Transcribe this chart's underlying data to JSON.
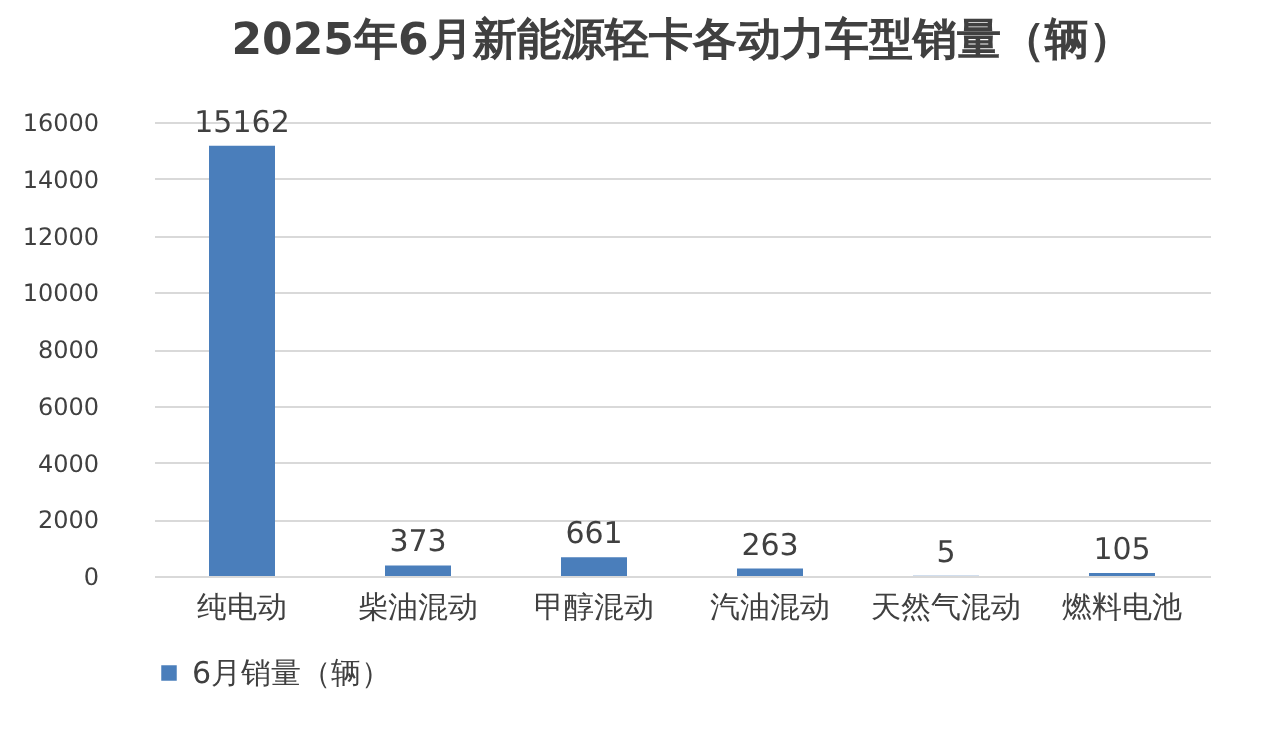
{
  "chart_data": {
    "type": "bar",
    "title": "2025年6月新能源轻卡各动力车型销量（辆）",
    "categories": [
      "纯电动",
      "柴油混动",
      "甲醇混动",
      "汽油混动",
      "天然气混动",
      "燃料电池"
    ],
    "series": [
      {
        "name": "6月销量（辆）",
        "color": "#4a7ebb",
        "values": [
          15162,
          373,
          661,
          263,
          5,
          105
        ]
      }
    ],
    "ylim": [
      0,
      16000
    ],
    "yticks": [
      0,
      2000,
      4000,
      6000,
      8000,
      10000,
      12000,
      14000,
      16000
    ],
    "grid": "y",
    "legend": "bottom",
    "data_labels": true
  }
}
